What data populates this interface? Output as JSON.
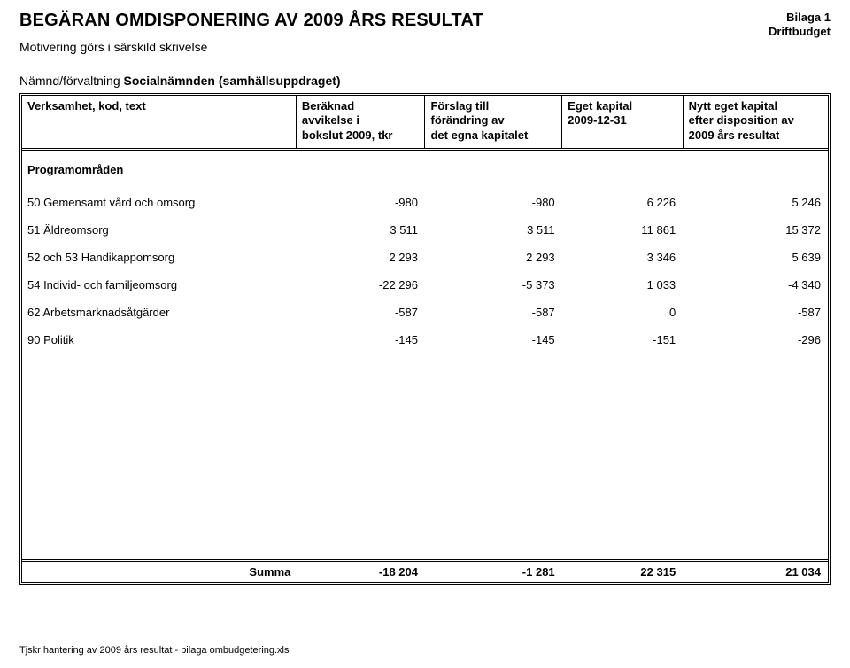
{
  "header": {
    "title": "BEGÄRAN OMDISPONERING AV 2009 ÅRS RESULTAT",
    "attachment": "Bilaga 1",
    "budget": "Driftbudget",
    "motivation": "Motivering görs i särskild skrivelse",
    "agency_label": "Nämnd/förvaltning ",
    "agency_name": "Socialnämnden (samhällsuppdraget)"
  },
  "table": {
    "columns": [
      "Verksamhet, kod, text",
      "Beräknad\navvikelse i\nbokslut 2009, tkr",
      "Förslag till\nförändring av\ndet egna kapitalet",
      "Eget kapital\n2009-12-31",
      "Nytt eget kapital\nefter disposition av\n2009 års resultat"
    ],
    "section": "Programområden",
    "rows": [
      {
        "label": "50 Gemensamt vård och omsorg",
        "v": [
          "-980",
          "-980",
          "6 226",
          "5 246"
        ]
      },
      {
        "label": "51 Äldreomsorg",
        "v": [
          "3 511",
          "3 511",
          "11 861",
          "15 372"
        ]
      },
      {
        "label": "52 och 53 Handikappomsorg",
        "v": [
          "2 293",
          "2 293",
          "3 346",
          "5 639"
        ]
      },
      {
        "label": "54 Individ- och familjeomsorg",
        "v": [
          "-22 296",
          "-5 373",
          "1 033",
          "-4 340"
        ]
      },
      {
        "label": "62 Arbetsmarknadsåtgärder",
        "v": [
          "-587",
          "-587",
          "0",
          "-587"
        ]
      },
      {
        "label": "90 Politik",
        "v": [
          "-145",
          "-145",
          "-151",
          "-296"
        ]
      }
    ],
    "footer": {
      "label": "Summa",
      "v": [
        "-18 204",
        "-1 281",
        "22 315",
        "21 034"
      ]
    }
  },
  "footnote": "Tjskr hantering av 2009 års resultat - bilaga ombudgetering.xls"
}
